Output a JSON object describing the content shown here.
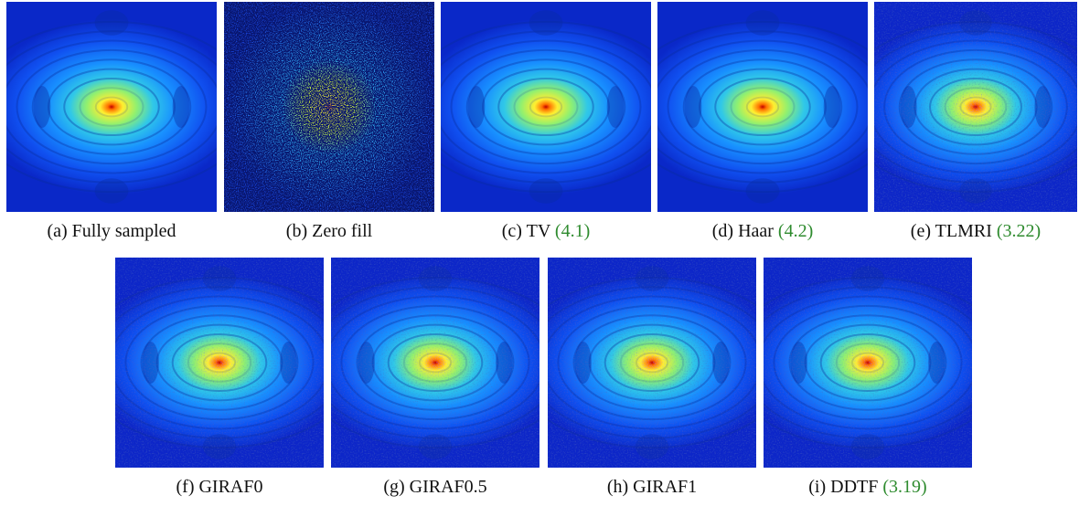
{
  "panels": [
    {
      "label": "(a)",
      "name": "Fully sampled"
    },
    {
      "label": "(b)",
      "name": "Zero fill"
    },
    {
      "label": "(c)",
      "name": "TV",
      "ref": "(4.1)"
    },
    {
      "label": "(d)",
      "name": "Haar",
      "ref": "(4.2)"
    },
    {
      "label": "(e)",
      "name": "TLMRI",
      "ref": "(3.22)"
    },
    {
      "label": "(f)",
      "name": "GIRAF0"
    },
    {
      "label": "(g)",
      "name": "GIRAF0.5"
    },
    {
      "label": "(h)",
      "name": "GIRAF1"
    },
    {
      "label": "(i)",
      "name": "DDTF",
      "ref": "(3.19)"
    }
  ]
}
